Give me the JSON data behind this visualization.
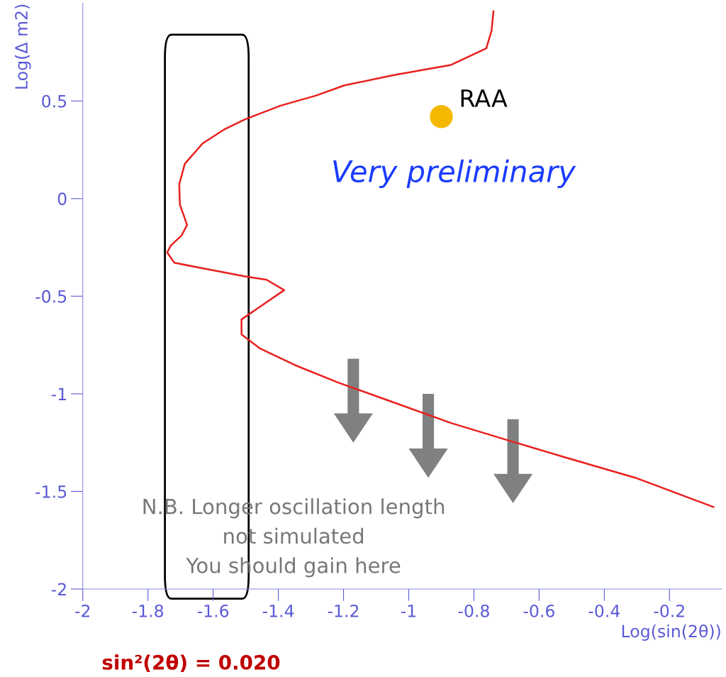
{
  "chart_data": {
    "type": "line",
    "xlabel": "Log(sin(2θ))",
    "ylabel": "Log(Δ m2)",
    "xlim": [
      -2,
      -0.04
    ],
    "ylim": [
      -2,
      1.0
    ],
    "xticks": [
      -2,
      -1.8,
      -1.6,
      -1.4,
      -1.2,
      -1,
      -0.8,
      -0.6,
      -0.4,
      -0.2
    ],
    "yticks": [
      -2,
      -1.5,
      -1,
      -0.5,
      0,
      0.5
    ],
    "grid": false,
    "legend": false,
    "marker": "none",
    "line_style": "solid",
    "series": [
      {
        "color": "#e8201e",
        "x": [
          -0.74,
          -0.746,
          -0.762,
          -0.87,
          -1.045,
          -1.197,
          -1.284,
          -1.393,
          -1.502,
          -1.567,
          -1.632,
          -1.687,
          -1.704,
          -1.702,
          -1.687,
          -1.68,
          -1.697,
          -1.73,
          -1.741,
          -1.719,
          -1.61,
          -1.502,
          -1.436,
          -1.382,
          -1.458,
          -1.513,
          -1.513,
          -1.458,
          -1.349,
          -1.219,
          -1.045,
          -0.87,
          -0.696,
          -0.522,
          -0.305,
          -0.065
        ],
        "values": [
          0.96,
          0.86,
          0.77,
          0.685,
          0.633,
          0.58,
          0.528,
          0.476,
          0.406,
          0.353,
          0.283,
          0.178,
          0.073,
          -0.031,
          -0.101,
          -0.136,
          -0.189,
          -0.241,
          -0.276,
          -0.329,
          -0.364,
          -0.399,
          -0.416,
          -0.469,
          -0.556,
          -0.619,
          -0.696,
          -0.766,
          -0.853,
          -0.941,
          -1.045,
          -1.15,
          -1.238,
          -1.325,
          -1.43,
          -1.58
        ]
      },
      {
        "type": "scatter",
        "name": "RAA",
        "color": "#f5b800",
        "marker": "circle",
        "x": [
          -0.9
        ],
        "values": [
          0.42
        ]
      }
    ],
    "annotations": [
      "Very preliminary",
      "N.B. Longer oscillation length\nnot simulated\nYou should gain here",
      "sin²(2θ) = 0.020"
    ]
  }
}
